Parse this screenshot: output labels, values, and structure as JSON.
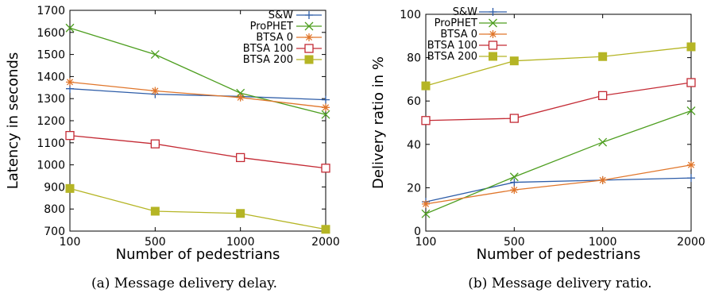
{
  "chart_data": [
    {
      "type": "line",
      "caption": "(a) Message delivery delay.",
      "xlabel": "Number of pedestrians",
      "ylabel": "Latency in seconds",
      "categories": [
        "100",
        "500",
        "1000",
        "2000"
      ],
      "ylim": [
        700,
        1700
      ],
      "yticks": [
        700,
        800,
        900,
        1000,
        1100,
        1200,
        1300,
        1400,
        1500,
        1600,
        1700
      ],
      "grid": false,
      "legend": "top-right",
      "series": [
        {
          "name": "S&W",
          "color": "#2e5da8",
          "marker": "plus",
          "values": [
            1345,
            1320,
            1310,
            1295
          ]
        },
        {
          "name": "ProPHET",
          "color": "#4d9e1f",
          "marker": "x",
          "values": [
            1620,
            1500,
            1325,
            1228
          ]
        },
        {
          "name": "BTSA 0",
          "color": "#e0762b",
          "marker": "star",
          "values": [
            1375,
            1335,
            1305,
            1260
          ]
        },
        {
          "name": "BTSA 100",
          "color": "#c42b35",
          "marker": "square-open",
          "values": [
            1133,
            1095,
            1033,
            985
          ]
        },
        {
          "name": "BTSA 200",
          "color": "#b5b525",
          "marker": "square-filled",
          "values": [
            893,
            790,
            780,
            708
          ]
        }
      ]
    },
    {
      "type": "line",
      "caption": "(b) Message delivery ratio.",
      "xlabel": "Number of pedestrians",
      "ylabel": "Delivery ratio in %",
      "categories": [
        "100",
        "500",
        "1000",
        "2000"
      ],
      "ylim": [
        0,
        100
      ],
      "yticks": [
        0,
        20,
        40,
        60,
        80,
        100
      ],
      "grid": false,
      "legend": "top-left",
      "series": [
        {
          "name": "S&W",
          "color": "#2e5da8",
          "marker": "plus",
          "values": [
            13.5,
            22.5,
            23.5,
            24.5
          ]
        },
        {
          "name": "ProPHET",
          "color": "#4d9e1f",
          "marker": "x",
          "values": [
            8,
            25,
            41,
            55.5
          ]
        },
        {
          "name": "BTSA 0",
          "color": "#e0762b",
          "marker": "star",
          "values": [
            12.5,
            19,
            23.5,
            30.5
          ]
        },
        {
          "name": "BTSA 100",
          "color": "#c42b35",
          "marker": "square-open",
          "values": [
            51,
            52,
            62.5,
            68.5
          ]
        },
        {
          "name": "BTSA 200",
          "color": "#b5b525",
          "marker": "square-filled",
          "values": [
            67,
            78.5,
            80.5,
            85
          ]
        }
      ]
    }
  ]
}
